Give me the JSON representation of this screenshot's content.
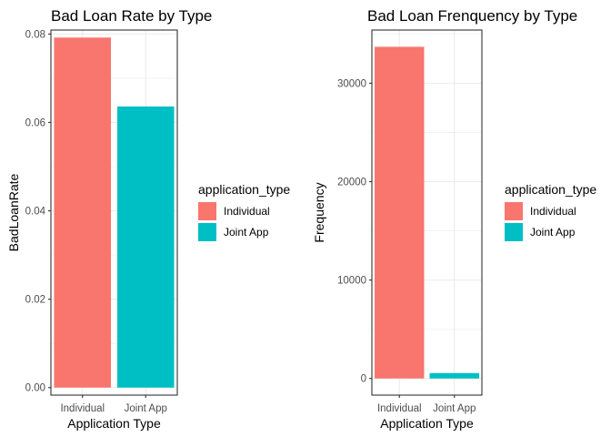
{
  "chart_data": [
    {
      "type": "bar",
      "title": "Bad Loan Rate by Type",
      "xlabel": "Application Type",
      "ylabel": "BadLoanRate",
      "categories": [
        "Individual",
        "Joint App"
      ],
      "values": [
        0.0792,
        0.0636
      ],
      "ylim": [
        -0.0017,
        0.0809
      ],
      "yticks": [
        0.0,
        0.02,
        0.04,
        0.06,
        0.08
      ],
      "ytick_labels": [
        "0.00",
        "0.02",
        "0.04",
        "0.06",
        "0.08"
      ],
      "grid": true,
      "legend": {
        "title": "application_type",
        "position": "right",
        "entries": [
          {
            "label": "Individual",
            "color": "#F8766D"
          },
          {
            "label": "Joint App",
            "color": "#00BFC4"
          }
        ]
      }
    },
    {
      "type": "bar",
      "title": "Bad Loan Frenquency by Type",
      "xlabel": "Application Type",
      "ylabel": "Frequency",
      "categories": [
        "Individual",
        "Joint App"
      ],
      "values": [
        33700,
        550
      ],
      "ylim": [
        -1690,
        35400
      ],
      "yticks": [
        0,
        10000,
        20000,
        30000
      ],
      "ytick_labels": [
        "0",
        "10000",
        "20000",
        "30000"
      ],
      "grid": true,
      "legend": {
        "title": "application_type",
        "position": "right",
        "entries": [
          {
            "label": "Individual",
            "color": "#F8766D"
          },
          {
            "label": "Joint App",
            "color": "#00BFC4"
          }
        ]
      }
    }
  ]
}
